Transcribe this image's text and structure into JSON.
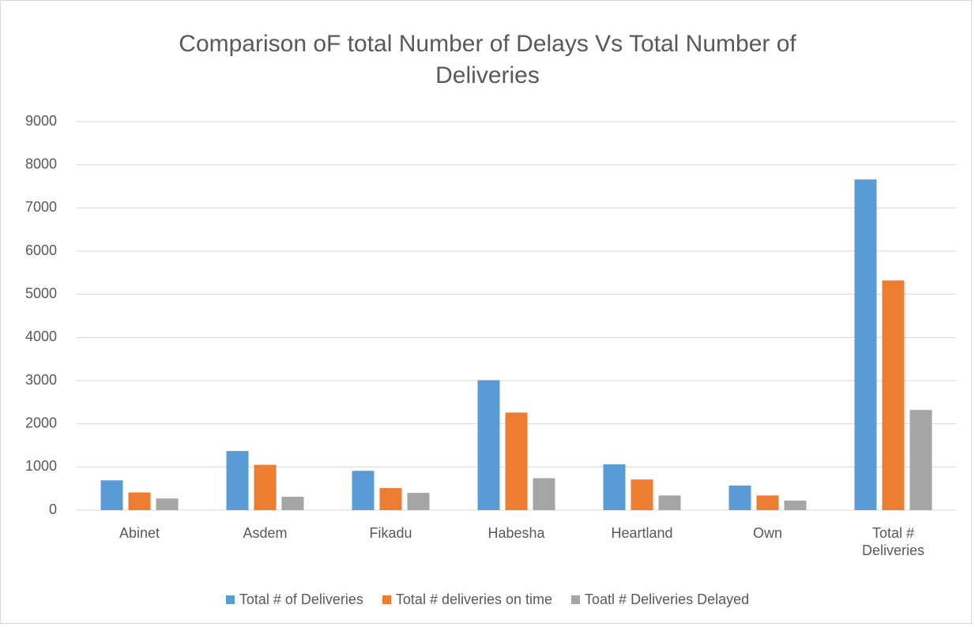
{
  "chart_data": {
    "type": "bar",
    "title": "Comparison oF total Number of Delays Vs Total Number of Deliveries",
    "categories": [
      "Abinet",
      "Asdem",
      "Fikadu",
      "Habesha",
      "Heartland",
      "Own",
      "Total # Deliveries"
    ],
    "series": [
      {
        "name": "Total # of Deliveries",
        "color": "#5b9bd5",
        "values": [
          690,
          1370,
          910,
          3010,
          1060,
          570,
          7660
        ]
      },
      {
        "name": "Total # deliveries on time",
        "color": "#ed7d31",
        "values": [
          410,
          1050,
          510,
          2260,
          710,
          340,
          5320
        ]
      },
      {
        "name": "Toatl # Deliveries Delayed",
        "color": "#a5a5a5",
        "values": [
          270,
          310,
          400,
          740,
          340,
          220,
          2320
        ]
      }
    ],
    "ylim": [
      0,
      9000
    ],
    "yticks": [
      0,
      1000,
      2000,
      3000,
      4000,
      5000,
      6000,
      7000,
      8000,
      9000
    ],
    "grid": true,
    "legend": "bottom"
  }
}
